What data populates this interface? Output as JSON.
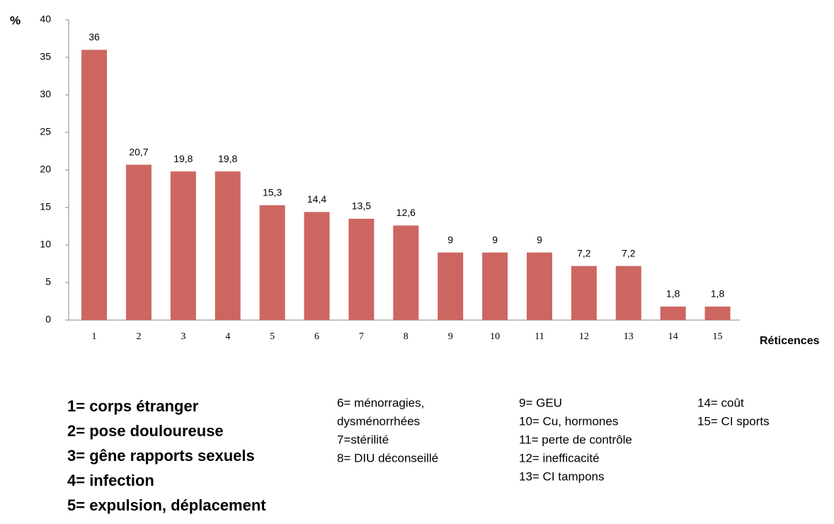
{
  "chart_data": {
    "type": "bar",
    "y_label": "%",
    "x_label": "Réticences",
    "categories": [
      "1",
      "2",
      "3",
      "4",
      "5",
      "6",
      "7",
      "8",
      "9",
      "10",
      "11",
      "12",
      "13",
      "14",
      "15"
    ],
    "values": [
      36,
      20.7,
      19.8,
      19.8,
      15.3,
      14.4,
      13.5,
      12.6,
      9,
      9,
      9,
      7.2,
      7.2,
      1.8,
      1.8
    ],
    "value_labels": [
      "36",
      "20,7",
      "19,8",
      "19,8",
      "15,3",
      "14,4",
      "13,5",
      "12,6",
      "9",
      "9",
      "9",
      "7,2",
      "7,2",
      "1,8",
      "1,8"
    ],
    "color": "#cd6660",
    "ylim": [
      0,
      40
    ],
    "yticks": [
      0,
      5,
      10,
      15,
      20,
      25,
      30,
      35,
      40
    ],
    "grid": false
  },
  "notes": [
    [
      "1= corps étranger",
      "2= pose douloureuse",
      "3= gêne rapports sexuels",
      "4= infection",
      "5= expulsion, déplacement"
    ],
    [
      "6= ménorragies,",
      "dysménorrhées",
      "7=stérilité",
      "8= DIU déconseillé"
    ],
    [
      "9=  GEU",
      "10= Cu, hormones",
      "11= perte de contrôle",
      "12= inefficacité",
      "13= CI tampons"
    ],
    [
      "14= coût",
      "15= CI sports"
    ]
  ]
}
